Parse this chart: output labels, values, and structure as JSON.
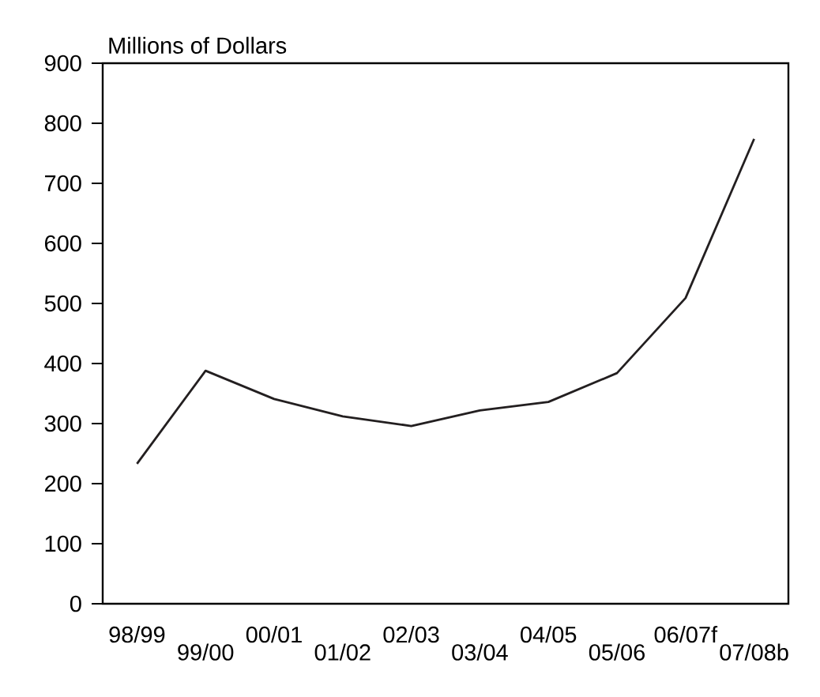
{
  "chart_data": {
    "type": "line",
    "ylabel": "Millions of Dollars",
    "categories": [
      "98/99",
      "99/00",
      "00/01",
      "01/02",
      "02/03",
      "03/04",
      "04/05",
      "05/06",
      "06/07f",
      "07/08b"
    ],
    "values": [
      233,
      388,
      341,
      312,
      296,
      322,
      336,
      384,
      509,
      774
    ],
    "color": "#231f20",
    "ylim": [
      0,
      900
    ],
    "yticks": [
      0,
      100,
      200,
      300,
      400,
      500,
      600,
      700,
      800,
      900
    ],
    "grid": false,
    "marker": "none",
    "line_style": "solid"
  }
}
